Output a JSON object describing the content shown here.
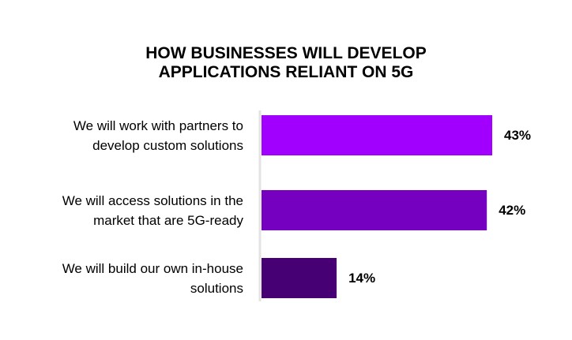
{
  "chart_data": {
    "type": "bar",
    "orientation": "horizontal",
    "title": [
      "HOW BUSINESSES WILL DEVELOP",
      "APPLICATIONS RELIANT ON 5G"
    ],
    "categories": [
      "We will work with partners to develop custom solutions",
      "We will access solutions in the market that are 5G-ready",
      "We will build our own in-house solutions"
    ],
    "values": [
      43,
      42,
      14
    ],
    "value_labels": [
      "43%",
      "42%",
      "14%"
    ],
    "colors": [
      "#a100ff",
      "#7500c0",
      "#460073"
    ]
  }
}
